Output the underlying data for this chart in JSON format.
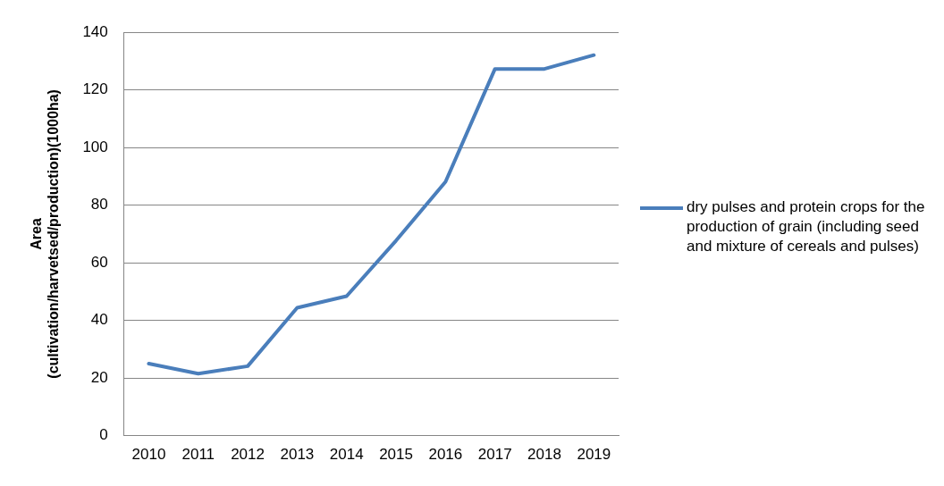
{
  "chart_data": {
    "type": "line",
    "ylabel": "Area (cultivation/harvetsed/production)(1000ha)",
    "categories": [
      "2010",
      "2011",
      "2012",
      "2013",
      "2014",
      "2015",
      "2016",
      "2017",
      "2018",
      "2019"
    ],
    "series": [
      {
        "name": "dry pulses and protein crops for the production of grain (including seed and mixture of cereals and pulses)",
        "color": "#4a7ebb",
        "values": [
          25,
          21.5,
          24.1,
          44.4,
          48.4,
          67.7,
          88.1,
          127.3,
          127.3,
          132.1
        ]
      }
    ],
    "ylim": [
      0,
      140
    ],
    "yticks": [
      0,
      20,
      40,
      60,
      80,
      100,
      120,
      140
    ],
    "grid": "y",
    "legend": "right",
    "marker": "none",
    "line_style": "solid"
  }
}
